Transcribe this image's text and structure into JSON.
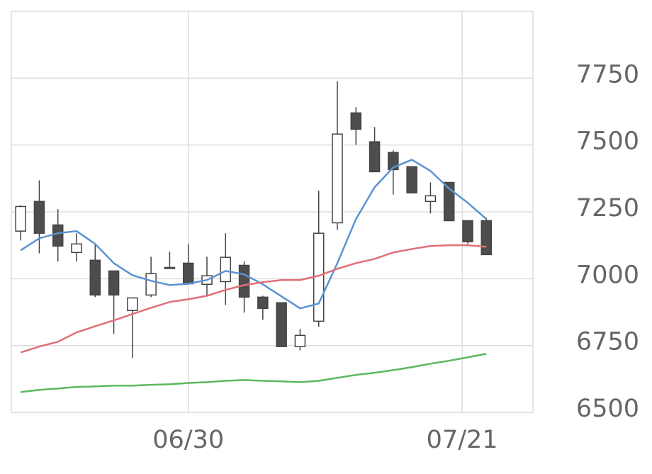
{
  "chart_data": {
    "type": "candlestick",
    "xlim": [
      -0.5,
      27.5
    ],
    "xticks": [
      {
        "value": 9,
        "label": "06/30"
      },
      {
        "value": 23.7,
        "label": "07/21"
      }
    ],
    "ylim": [
      6500,
      8000
    ],
    "yticks": [
      6500,
      6750,
      7000,
      7250,
      7500,
      7750
    ],
    "grid": true,
    "up_color": "#ffffff",
    "down_color": "#4d4d4d",
    "edge_color": "#444444",
    "open": [
      7178,
      7289,
      7201,
      7098,
      7069,
      7029,
      6881,
      6939,
      7040,
      7058,
      6979,
      6989,
      7050,
      6931,
      6910,
      6746,
      6841,
      7209,
      7620,
      7512,
      7472,
      7419,
      7289,
      7360,
      7217,
      7217
    ],
    "high": [
      7275,
      7368,
      7260,
      7170,
      7130,
      7029,
      6928,
      7082,
      7101,
      7130,
      7082,
      7170,
      7064,
      6936,
      6910,
      6812,
      7329,
      7739,
      7641,
      7567,
      7480,
      7419,
      7360,
      7360,
      7217,
      7228
    ],
    "low": [
      7143,
      7095,
      7064,
      7064,
      6931,
      6793,
      6703,
      6931,
      7040,
      6981,
      6936,
      6902,
      6873,
      6846,
      6746,
      6732,
      6820,
      7183,
      7501,
      7400,
      7315,
      7321,
      7244,
      7217,
      7130,
      7090
    ],
    "close": [
      7270,
      7170,
      7122,
      7130,
      6939,
      6939,
      6928,
      7019,
      7042,
      6981,
      7011,
      7080,
      6931,
      6889,
      6746,
      6788,
      7170,
      7541,
      7559,
      7400,
      7408,
      7321,
      7310,
      7217,
      7138,
      7090
    ],
    "lines": [
      {
        "color": "#5b93d3",
        "values": [
          7106,
          7151,
          7170,
          7178,
          7130,
          7058,
          7013,
          6992,
          6976,
          6981,
          6995,
          7029,
          7016,
          6979,
          6934,
          6889,
          6907,
          7058,
          7223,
          7342,
          7416,
          7445,
          7403,
          7337,
          7284,
          7223
        ]
      },
      {
        "color": "#e06f78",
        "values": [
          6724,
          6746,
          6764,
          6799,
          6822,
          6844,
          6868,
          6891,
          6913,
          6923,
          6936,
          6958,
          6976,
          6987,
          6995,
          6995,
          7011,
          7037,
          7058,
          7074,
          7098,
          7111,
          7122,
          7125,
          7125,
          7119
        ]
      },
      {
        "color": "#5cb85c",
        "values": [
          6576,
          6584,
          6589,
          6595,
          6597,
          6600,
          6600,
          6603,
          6605,
          6610,
          6613,
          6618,
          6621,
          6618,
          6616,
          6613,
          6618,
          6629,
          6640,
          6648,
          6658,
          6669,
          6682,
          6693,
          6706,
          6719
        ]
      }
    ]
  }
}
